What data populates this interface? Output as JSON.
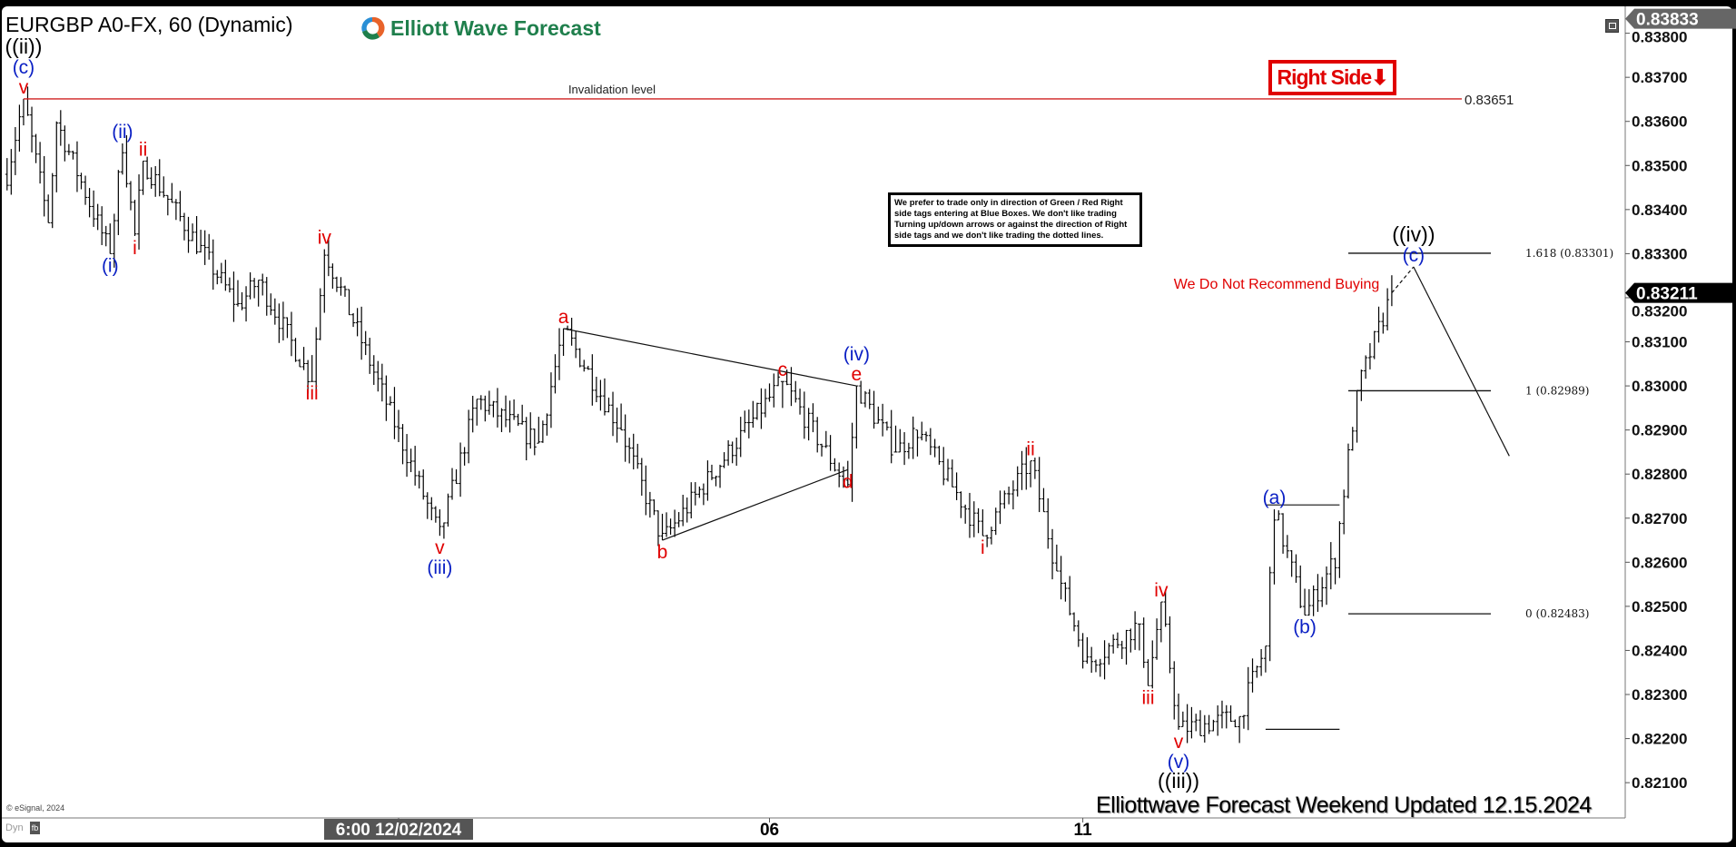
{
  "header": {
    "title": "EURGBP A0-FX, 60 (Dynamic)",
    "logo_text": "Elliott Wave Forecast"
  },
  "annotations": {
    "invalidation_label": "Invalidation level",
    "invalidation_value": "0.83651",
    "right_side_tag": "Right Side",
    "right_side_arrow": "⬇",
    "recommendation": "We Do Not Recommend Buying",
    "note": "We prefer to trade only in direction of Green / Red Right side tags entering at Blue Boxes. We don't like trading Turning up/down arrows or against the direction of Right side tags and we don't like trading the dotted lines.",
    "footer": "Elliottwave Forecast Weekend Updated 12.15.2024",
    "copyright": "© eSignal, 2024",
    "dyn_label": "Dyn"
  },
  "colors": {
    "red_label": "#e00000",
    "blue_label": "#0a1fc4",
    "black_label": "#000000",
    "invalidation_line": "#d02020",
    "logo_green": "#1f7f4c",
    "axis_highlight": "#555555"
  },
  "chart_data": {
    "type": "ohlc",
    "symbol": "EURGBP A0-FX",
    "interval": "60",
    "ylim": [
      0.8205,
      0.8385
    ],
    "y_ticks": [
      "0.83800",
      "0.83700",
      "0.83600",
      "0.83500",
      "0.83400",
      "0.83300",
      "0.83200",
      "0.83100",
      "0.83000",
      "0.82900",
      "0.82800",
      "0.82700",
      "0.82600",
      "0.82500",
      "0.82400",
      "0.82300",
      "0.82200",
      "0.82100"
    ],
    "x_ticks": [
      {
        "label": "6:00 12/02/2024",
        "time": "12/02 06:00",
        "highlight": true
      },
      {
        "label": "06",
        "time": "12/06 00:00",
        "highlight": false
      },
      {
        "label": "11",
        "time": "12/11 00:00",
        "highlight": false
      }
    ],
    "high_tag": "0.83833",
    "last_price": "0.83211",
    "price_path": [
      {
        "time": "11/26 07:00",
        "price": 0.8348
      },
      {
        "time": "11/26 11:00",
        "price": 0.83651
      },
      {
        "time": "11/26 17:00",
        "price": 0.8337
      },
      {
        "time": "11/26 19:00",
        "price": 0.836
      },
      {
        "time": "11/27 08:00",
        "price": 0.833
      },
      {
        "time": "11/27 11:00",
        "price": 0.8355
      },
      {
        "time": "11/27 14:00",
        "price": 0.8334
      },
      {
        "time": "11/27 16:00",
        "price": 0.8351
      },
      {
        "time": "11/28 15:00",
        "price": 0.8318
      },
      {
        "time": "11/28 20:00",
        "price": 0.8324
      },
      {
        "time": "11/29 09:00",
        "price": 0.8301
      },
      {
        "time": "11/29 12:00",
        "price": 0.8331
      },
      {
        "time": "12/02 16:00",
        "price": 0.8266
      },
      {
        "time": "12/03 01:00",
        "price": 0.8297
      },
      {
        "time": "12/03 16:00",
        "price": 0.8287
      },
      {
        "time": "12/03 22:00",
        "price": 0.8313
      },
      {
        "time": "12/04 12:00",
        "price": 0.829
      },
      {
        "time": "12/04 22:00",
        "price": 0.8265
      },
      {
        "time": "12/06 03:00",
        "price": 0.8301
      },
      {
        "time": "12/06 18:00",
        "price": 0.8277
      },
      {
        "time": "12/06 20:00",
        "price": 0.83
      },
      {
        "time": "12/09 05:00",
        "price": 0.8285
      },
      {
        "time": "12/09 10:00",
        "price": 0.829
      },
      {
        "time": "12/10 01:00",
        "price": 0.8266
      },
      {
        "time": "12/10 12:00",
        "price": 0.8283
      },
      {
        "time": "12/10 18:00",
        "price": 0.8258
      },
      {
        "time": "12/11 01:00",
        "price": 0.8237
      },
      {
        "time": "12/11 13:00",
        "price": 0.8246
      },
      {
        "time": "12/11 15:00",
        "price": 0.8232
      },
      {
        "time": "12/11 18:00",
        "price": 0.8251
      },
      {
        "time": "12/11 22:00",
        "price": 0.8222
      },
      {
        "time": "12/12 12:00",
        "price": 0.8225
      },
      {
        "time": "12/12 18:00",
        "price": 0.8241
      },
      {
        "time": "12/12 20:00",
        "price": 0.8272
      },
      {
        "time": "12/13 03:00",
        "price": 0.8248
      },
      {
        "time": "12/13 10:00",
        "price": 0.8261
      },
      {
        "time": "12/13 15:00",
        "price": 0.8299
      },
      {
        "time": "12/13 23:00",
        "price": 0.83211
      }
    ],
    "wave_labels": [
      {
        "text": "((ii))",
        "time": "11/26 11:00",
        "price": 0.83651,
        "color": "black",
        "stack": 3
      },
      {
        "text": "(c)",
        "time": "11/26 11:00",
        "price": 0.83651,
        "color": "blue",
        "stack": 2
      },
      {
        "text": "v",
        "time": "11/26 11:00",
        "price": 0.83651,
        "color": "red",
        "stack": 1
      },
      {
        "text": "(ii)",
        "time": "11/27 11:00",
        "price": 0.8355,
        "color": "blue",
        "stack": 1
      },
      {
        "text": "ii",
        "time": "11/27 16:00",
        "price": 0.8351,
        "color": "red",
        "stack": 1
      },
      {
        "text": "(i)",
        "time": "11/27 08:00",
        "price": 0.833,
        "color": "blue",
        "stack": -1
      },
      {
        "text": "i",
        "time": "11/27 14:00",
        "price": 0.8334,
        "color": "red",
        "stack": -1
      },
      {
        "text": "iv",
        "time": "11/29 12:00",
        "price": 0.8331,
        "color": "red",
        "stack": 1
      },
      {
        "text": "iii",
        "time": "11/29 09:00",
        "price": 0.8301,
        "color": "red",
        "stack": -1
      },
      {
        "text": "v",
        "time": "12/02 16:00",
        "price": 0.8266,
        "color": "red",
        "stack": -1
      },
      {
        "text": "(iii)",
        "time": "12/02 16:00",
        "price": 0.8266,
        "color": "blue",
        "stack": -2
      },
      {
        "text": "a",
        "time": "12/03 22:00",
        "price": 0.8313,
        "color": "red",
        "stack": 1
      },
      {
        "text": "b",
        "time": "12/04 22:00",
        "price": 0.8265,
        "color": "red",
        "stack": -1
      },
      {
        "text": "c",
        "time": "12/06 03:00",
        "price": 0.8301,
        "color": "red",
        "stack": 1
      },
      {
        "text": "d",
        "time": "12/06 18:00",
        "price": 0.8281,
        "color": "red",
        "stack": -1
      },
      {
        "text": "e",
        "time": "12/06 20:00",
        "price": 0.83,
        "color": "red",
        "stack": 1
      },
      {
        "text": "(iv)",
        "time": "12/06 20:00",
        "price": 0.83,
        "color": "blue",
        "stack": 2
      },
      {
        "text": "i",
        "time": "12/10 01:00",
        "price": 0.8266,
        "color": "red",
        "stack": -1
      },
      {
        "text": "ii",
        "time": "12/10 12:00",
        "price": 0.8283,
        "color": "red",
        "stack": 1
      },
      {
        "text": "iii",
        "time": "12/11 15:00",
        "price": 0.8232,
        "color": "red",
        "stack": -1
      },
      {
        "text": "iv",
        "time": "12/11 18:00",
        "price": 0.8251,
        "color": "red",
        "stack": 1
      },
      {
        "text": "v",
        "time": "12/11 22:00",
        "price": 0.8222,
        "color": "red",
        "stack": -1
      },
      {
        "text": "(v)",
        "time": "12/11 22:00",
        "price": 0.8222,
        "color": "blue",
        "stack": -2
      },
      {
        "text": "((iii))",
        "time": "12/11 22:00",
        "price": 0.8222,
        "color": "black",
        "stack": -3
      },
      {
        "text": "(a)",
        "time": "12/12 20:00",
        "price": 0.8272,
        "color": "blue",
        "stack": 1
      },
      {
        "text": "(b)",
        "time": "12/13 03:00",
        "price": 0.8248,
        "color": "blue",
        "stack": -1
      },
      {
        "text": "((iv))",
        "time": "12/14 04:00",
        "price": 0.8327,
        "color": "black",
        "stack": 2
      },
      {
        "text": "(c)",
        "time": "12/14 04:00",
        "price": 0.8327,
        "color": "blue",
        "stack": 1
      }
    ],
    "trendlines": [
      {
        "name": "triangle-upper-line",
        "from": {
          "time": "12/03 22:00",
          "price": 0.8313
        },
        "to": {
          "time": "12/06 20:00",
          "price": 0.83
        }
      },
      {
        "name": "triangle-lower-line",
        "from": {
          "time": "12/04 22:00",
          "price": 0.8265
        },
        "to": {
          "time": "12/06 18:00",
          "price": 0.8281
        }
      },
      {
        "name": "wave-a-level-line",
        "from": {
          "time": "12/12 18:00",
          "price": 0.8273
        },
        "to": {
          "time": "12/13 11:00",
          "price": 0.8273
        }
      },
      {
        "name": "wave-iii-low-line",
        "from": {
          "time": "12/12 18:00",
          "price": 0.82221
        },
        "to": {
          "time": "12/13 11:00",
          "price": 0.82221
        }
      },
      {
        "name": "projection-down-line",
        "from": {
          "time": "12/14 04:00",
          "price": 0.8327
        },
        "to": {
          "time": "12/16 02:00",
          "price": 0.82841
        }
      }
    ],
    "projection_dashed": {
      "from": {
        "time": "12/13 23:00",
        "price": 0.83211
      },
      "to": {
        "time": "12/14 04:00",
        "price": 0.8327
      }
    },
    "invalidation": {
      "price": 0.83651,
      "from": "11/26 11:00"
    },
    "fib_levels": [
      {
        "ratio": "1.618",
        "price": 0.83301,
        "label": "1.618 (0.83301)"
      },
      {
        "ratio": "1",
        "price": 0.82989,
        "label": "1 (0.82989)"
      },
      {
        "ratio": "0",
        "price": 0.82483,
        "label": "0 (0.82483)"
      }
    ]
  }
}
